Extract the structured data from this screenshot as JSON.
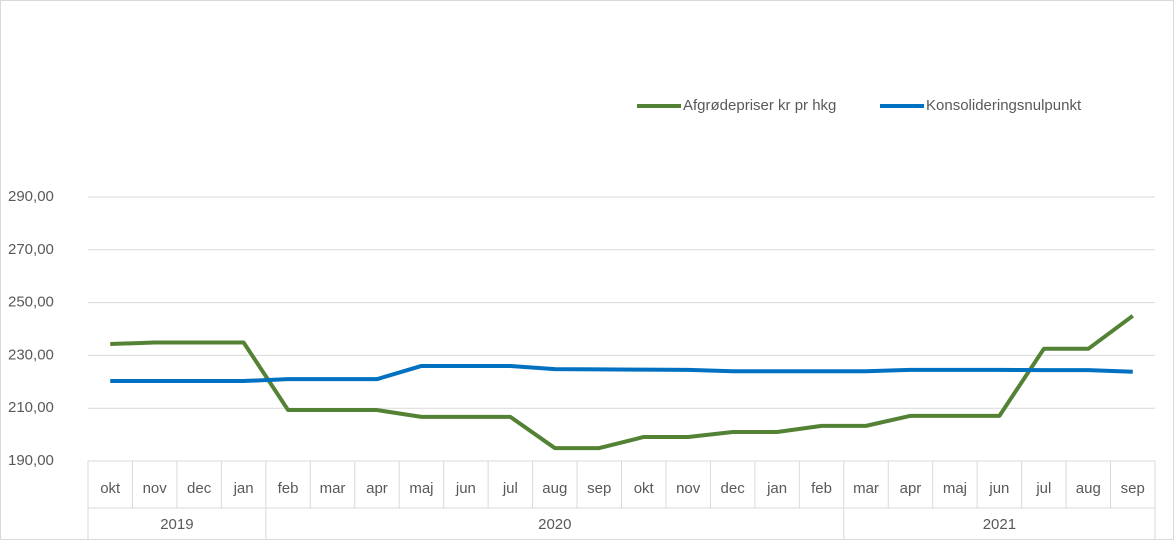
{
  "chart_data": {
    "type": "line",
    "categories": [
      "okt",
      "nov",
      "dec",
      "jan",
      "feb",
      "mar",
      "apr",
      "maj",
      "jun",
      "jul",
      "aug",
      "sep",
      "okt",
      "nov",
      "dec",
      "jan",
      "feb",
      "mar",
      "apr",
      "maj",
      "jun",
      "jul",
      "aug",
      "sep"
    ],
    "category_groups": [
      "2019",
      null,
      null,
      null,
      "2020",
      null,
      null,
      null,
      null,
      null,
      null,
      null,
      null,
      null,
      null,
      null,
      null,
      "2021",
      null,
      null,
      null,
      null,
      null,
      null
    ],
    "series": [
      {
        "name": "Afgrødepriser kr pr hkg",
        "color": "#548235",
        "values": [
          234.3,
          234.9,
          234.9,
          234.9,
          209.3,
          209.3,
          209.3,
          206.7,
          206.7,
          206.7,
          194.9,
          194.9,
          199.1,
          199.1,
          201.0,
          201.0,
          203.3,
          203.3,
          207.1,
          207.1,
          207.1,
          232.5,
          232.5,
          245.0
        ]
      },
      {
        "name": "Konsolideringsnulpunkt",
        "color": "#0070c0",
        "values": [
          220.3,
          220.3,
          220.3,
          220.3,
          221.0,
          221.0,
          221.0,
          226.0,
          226.0,
          226.0,
          224.8,
          224.7,
          224.6,
          224.5,
          224.0,
          224.0,
          224.0,
          224.0,
          224.5,
          224.5,
          224.5,
          224.4,
          224.4,
          223.8
        ]
      }
    ],
    "ylim": [
      190,
      290
    ],
    "yticks": [
      {
        "value": 190,
        "label": "190,00"
      },
      {
        "value": 210,
        "label": "210,00"
      },
      {
        "value": 230,
        "label": "230,00"
      },
      {
        "value": 250,
        "label": "250,00"
      },
      {
        "value": 270,
        "label": "270,00"
      },
      {
        "value": 290,
        "label": "290,00"
      }
    ],
    "grid": true,
    "legend": "top"
  }
}
